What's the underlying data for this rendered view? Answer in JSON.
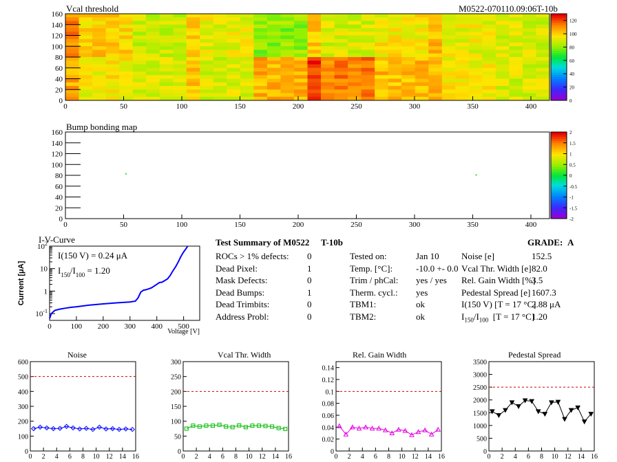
{
  "top_right_label": "M0522-070110.09:06T-10b",
  "summary": {
    "title": "Test Summary of M0522",
    "title_suffix": "T-10b",
    "grade_label": "GRADE:",
    "grade": "A",
    "col1": [
      {
        "label": "ROCs > 1% defects:",
        "value": "0"
      },
      {
        "label": "Dead Pixel:",
        "value": "1"
      },
      {
        "label": "Mask Defects:",
        "value": "0"
      },
      {
        "label": "Dead Bumps:",
        "value": "1"
      },
      {
        "label": "Dead Trimbits:",
        "value": "0"
      },
      {
        "label": "Address Probl:",
        "value": "0"
      }
    ],
    "col2": [
      {
        "label": "Tested on:",
        "value": "Jan 10"
      },
      {
        "label": "Temp. [°C]:",
        "value": "-10.0 +- 0.0"
      },
      {
        "label": "Trim / phCal:",
        "value": "yes / yes"
      },
      {
        "label": "Therm. cycl.:",
        "value": "yes"
      },
      {
        "label": "TBM1:",
        "value": "ok"
      },
      {
        "label": "TBM2:",
        "value": "ok"
      }
    ],
    "col3": [
      {
        "label": "Noise [e]",
        "value": "152.5"
      },
      {
        "label": "Vcal Thr. Width [e]",
        "value": "82.0"
      },
      {
        "label": "Rel. Gain Width [%]",
        "value": "3.5"
      },
      {
        "label": "Pedestal Spread [e]",
        "value": "1607.3"
      },
      {
        "label": "I(150 V) [T = 17 °C]",
        "value": "2.88 μA"
      },
      {
        "label": "I150/I100 [T = 17 °C]",
        "value": "1.20"
      }
    ]
  },
  "chart_data": [
    {
      "type": "heatmap",
      "title": "Vcal threshold",
      "x_ticks": [
        "0",
        "50",
        "100",
        "150",
        "200",
        "250",
        "300",
        "350",
        "400"
      ],
      "y_ticks": [
        "0",
        "20",
        "40",
        "60",
        "80",
        "100",
        "120",
        "140",
        "160"
      ],
      "xlim": [
        0,
        416
      ],
      "ylim": [
        0,
        160
      ],
      "colorbar_ticks": [
        "0",
        "20",
        "40",
        "60",
        "80",
        "100",
        "120"
      ],
      "colorbar_range": [
        0,
        130
      ]
    },
    {
      "type": "heatmap",
      "title": "Bump bonding map",
      "x_ticks": [
        "0",
        "50",
        "100",
        "150",
        "200",
        "250",
        "300",
        "350",
        "400"
      ],
      "y_ticks": [
        "0",
        "20",
        "40",
        "60",
        "80",
        "100",
        "120",
        "140",
        "160"
      ],
      "xlim": [
        0,
        416
      ],
      "ylim": [
        0,
        160
      ],
      "colorbar_ticks": [
        "-2",
        "-1.5",
        "-1",
        "-0.5",
        "0",
        "0.5",
        "1",
        "1.5",
        "2"
      ],
      "colorbar_range": [
        -2,
        2
      ],
      "points": [
        [
          52,
          83
        ],
        [
          353,
          81
        ]
      ]
    },
    {
      "type": "line",
      "title": "I-V-Curve",
      "xlabel": "Voltage [V]",
      "ylabel": "Current [μA]",
      "annotation1": "I(150 V) = 0.24 μA",
      "annotation2": "I150/I100 = 1.20",
      "x_ticks": [
        "0",
        "100",
        "200",
        "300",
        "400",
        "500"
      ],
      "y_ticks": [
        "10-1",
        "1",
        "10",
        "102"
      ],
      "xlim": [
        0,
        560
      ],
      "ylim": [
        0.05,
        100
      ],
      "log_y": true,
      "x": [
        0,
        5,
        10,
        20,
        40,
        60,
        80,
        100,
        150,
        200,
        250,
        300,
        320,
        330,
        340,
        350,
        360,
        380,
        400,
        410,
        420,
        440,
        450,
        460,
        470,
        480,
        490,
        500,
        510,
        515
      ],
      "y": [
        0.06,
        0.09,
        0.11,
        0.14,
        0.16,
        0.175,
        0.19,
        0.2,
        0.24,
        0.27,
        0.3,
        0.33,
        0.36,
        0.5,
        0.9,
        1.1,
        1.15,
        1.4,
        2.0,
        2.4,
        2.5,
        3.5,
        5.0,
        8.0,
        12.0,
        20.0,
        35.0,
        55.0,
        80.0,
        100.0
      ]
    },
    {
      "type": "line",
      "title": "Noise",
      "x_ticks": [
        "0",
        "2",
        "4",
        "6",
        "8",
        "10",
        "12",
        "14",
        "16"
      ],
      "y_ticks": [
        "0",
        "100",
        "200",
        "300",
        "400",
        "500",
        "600"
      ],
      "xlim": [
        0,
        16
      ],
      "ylim": [
        0,
        600
      ],
      "threshold": 500,
      "x": [
        0.5,
        1.5,
        2.5,
        3.5,
        4.5,
        5.5,
        6.5,
        7.5,
        8.5,
        9.5,
        10.5,
        11.5,
        12.5,
        13.5,
        14.5,
        15.5
      ],
      "values": [
        150,
        160,
        155,
        150,
        152,
        165,
        155,
        148,
        152,
        145,
        160,
        148,
        150,
        145,
        148,
        145
      ],
      "color": "#0000ff",
      "marker": "diamond"
    },
    {
      "type": "line",
      "title": "Vcal Thr. Width",
      "x_ticks": [
        "0",
        "2",
        "4",
        "6",
        "8",
        "10",
        "12",
        "14",
        "16"
      ],
      "y_ticks": [
        "0",
        "50",
        "100",
        "150",
        "200",
        "250",
        "300"
      ],
      "xlim": [
        0,
        16
      ],
      "ylim": [
        0,
        300
      ],
      "threshold": 200,
      "x": [
        0.5,
        1.5,
        2.5,
        3.5,
        4.5,
        5.5,
        6.5,
        7.5,
        8.5,
        9.5,
        10.5,
        11.5,
        12.5,
        13.5,
        14.5,
        15.5
      ],
      "values": [
        75,
        85,
        82,
        85,
        85,
        88,
        82,
        80,
        86,
        80,
        85,
        85,
        84,
        82,
        77,
        74
      ],
      "color": "#00bb00",
      "marker": "square"
    },
    {
      "type": "line",
      "title": "Rel. Gain Width",
      "x_ticks": [
        "0",
        "2",
        "4",
        "6",
        "8",
        "10",
        "12",
        "14",
        "16"
      ],
      "y_ticks": [
        "0",
        "0.02",
        "0.04",
        "0.06",
        "0.08",
        "0.1",
        "0.12",
        "0.14"
      ],
      "xlim": [
        0,
        16
      ],
      "ylim": [
        0,
        0.15
      ],
      "threshold": 0.1,
      "x": [
        0.5,
        1.5,
        2.5,
        3.5,
        4.5,
        5.5,
        6.5,
        7.5,
        8.5,
        9.5,
        10.5,
        11.5,
        12.5,
        13.5,
        14.5,
        15.5
      ],
      "values": [
        0.042,
        0.028,
        0.04,
        0.038,
        0.04,
        0.038,
        0.038,
        0.035,
        0.03,
        0.036,
        0.034,
        0.027,
        0.032,
        0.035,
        0.028,
        0.036
      ],
      "color": "#e000e0",
      "marker": "triangle"
    },
    {
      "type": "line",
      "title": "Pedestal Spread",
      "x_ticks": [
        "0",
        "2",
        "4",
        "6",
        "8",
        "10",
        "12",
        "14",
        "16"
      ],
      "y_ticks": [
        "0",
        "500",
        "1000",
        "1500",
        "2000",
        "2500",
        "3000",
        "3500"
      ],
      "xlim": [
        0,
        16
      ],
      "ylim": [
        0,
        3500
      ],
      "threshold": 2500,
      "x": [
        0.5,
        1.5,
        2.5,
        3.5,
        4.5,
        5.5,
        6.5,
        7.5,
        8.5,
        9.5,
        10.5,
        11.5,
        12.5,
        13.5,
        14.5,
        15.5
      ],
      "values": [
        1550,
        1400,
        1600,
        1900,
        1750,
        1980,
        1950,
        1550,
        1450,
        1900,
        1920,
        1250,
        1600,
        1700,
        1150,
        1450
      ],
      "color": "#000000",
      "marker": "triangle-down"
    }
  ]
}
